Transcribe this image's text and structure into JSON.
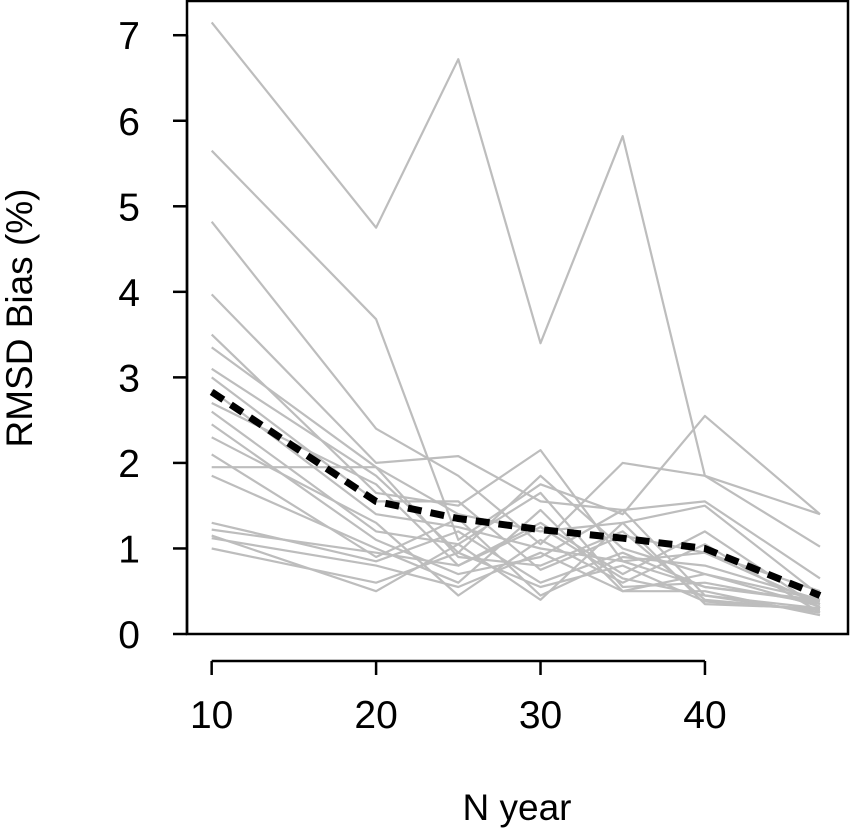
{
  "chart_data": {
    "type": "line",
    "title": "",
    "xlabel": "N year",
    "ylabel": "RMSD Bias (%)",
    "xlim": [
      8.5,
      48.7
    ],
    "ylim": [
      0,
      7.4
    ],
    "xticks": [
      10,
      20,
      30,
      40
    ],
    "yticks": [
      0,
      1,
      2,
      3,
      4,
      5,
      6,
      7
    ],
    "x": [
      10,
      20,
      25,
      30,
      35,
      40,
      47
    ],
    "grid": false,
    "legend": "none",
    "colors": {
      "series": "#bdbdbd",
      "mean": "#000000"
    },
    "series": [
      {
        "values": [
          7.15,
          4.75,
          6.72,
          3.4,
          5.82,
          1.85,
          1.4
        ]
      },
      {
        "values": [
          5.65,
          3.68,
          1.1,
          1.75,
          1.4,
          2.55,
          1.4
        ]
      },
      {
        "values": [
          4.82,
          2.4,
          1.85,
          1.05,
          2.0,
          1.85,
          1.02
        ]
      },
      {
        "values": [
          3.97,
          2.0,
          2.08,
          1.55,
          1.45,
          1.55,
          0.65
        ]
      },
      {
        "values": [
          3.5,
          1.65,
          1.5,
          2.15,
          0.85,
          0.95,
          0.5
        ]
      },
      {
        "values": [
          3.35,
          1.95,
          1.4,
          1.2,
          1.3,
          1.5,
          0.45
        ]
      },
      {
        "values": [
          3.1,
          1.85,
          0.95,
          1.85,
          1.0,
          0.7,
          0.4
        ]
      },
      {
        "values": [
          3.0,
          1.55,
          1.55,
          0.75,
          1.15,
          0.95,
          0.35
        ]
      },
      {
        "values": [
          2.85,
          1.4,
          1.25,
          1.0,
          0.85,
          0.55,
          0.4
        ]
      },
      {
        "values": [
          2.7,
          1.75,
          0.8,
          1.3,
          0.7,
          1.2,
          0.3
        ]
      },
      {
        "values": [
          2.6,
          1.2,
          1.05,
          1.65,
          0.55,
          0.6,
          0.35
        ]
      },
      {
        "values": [
          2.45,
          1.1,
          0.7,
          0.9,
          1.45,
          0.45,
          0.3
        ]
      },
      {
        "values": [
          2.3,
          1.3,
          0.45,
          1.1,
          0.6,
          1.05,
          0.25
        ]
      },
      {
        "values": [
          2.1,
          0.9,
          1.35,
          0.45,
          0.9,
          0.8,
          0.4
        ]
      },
      {
        "values": [
          1.95,
          1.95,
          0.9,
          0.8,
          1.2,
          0.4,
          0.28
        ]
      },
      {
        "values": [
          1.85,
          1.0,
          0.6,
          1.45,
          0.5,
          0.7,
          0.32
        ]
      },
      {
        "values": [
          1.3,
          0.85,
          1.2,
          0.6,
          0.95,
          0.55,
          0.38
        ]
      },
      {
        "values": [
          1.22,
          0.95,
          0.8,
          1.25,
          0.65,
          0.45,
          0.25
        ]
      },
      {
        "values": [
          1.15,
          0.5,
          1.05,
          0.4,
          1.3,
          0.35,
          0.3
        ]
      },
      {
        "values": [
          1.12,
          0.8,
          0.55,
          0.95,
          0.5,
          0.5,
          0.22
        ]
      },
      {
        "values": [
          1.0,
          0.6,
          0.95,
          0.55,
          0.8,
          0.38,
          0.28
        ]
      }
    ],
    "mean_series": {
      "values": [
        2.83,
        1.55,
        1.35,
        1.22,
        1.12,
        1.0,
        0.45
      ]
    }
  }
}
